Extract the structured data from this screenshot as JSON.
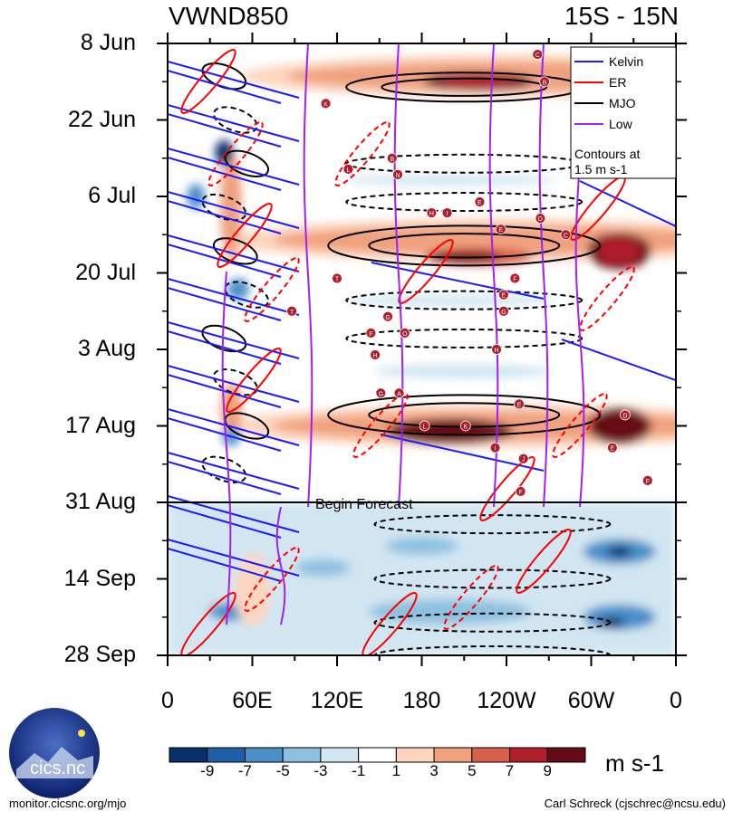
{
  "header": {
    "title_left": "VWND850",
    "title_right": "15S - 15N"
  },
  "chart_data": {
    "type": "heatmap",
    "title": "VWND850",
    "subtitle": "15S - 15N",
    "y_ticks": [
      "8 Jun",
      "22 Jun",
      "6 Jul",
      "20 Jul",
      "3 Aug",
      "17 Aug",
      "31 Aug",
      "14 Sep",
      "28 Sep"
    ],
    "x_ticks": [
      "0",
      "60E",
      "120E",
      "180",
      "120W",
      "60W",
      "0"
    ],
    "xlim": [
      0,
      360
    ],
    "y_range": [
      "8 Jun",
      "28 Sep"
    ],
    "forecast_line": {
      "date": "31 Aug",
      "label": "Begin Forecast"
    },
    "colorbar": {
      "labels": [
        "-9",
        "-7",
        "-5",
        "-3",
        "-1",
        "1",
        "3",
        "5",
        "7",
        "9"
      ],
      "units": "m s-1",
      "colors": [
        "#08306b",
        "#1f5fa8",
        "#4a8fc8",
        "#8ec1e0",
        "#d2e6f2",
        "#ffffff",
        "#fdd5be",
        "#f0a17e",
        "#d9604c",
        "#b01e2b",
        "#670a17"
      ]
    },
    "legend": {
      "placement": "top-right",
      "entries": [
        {
          "name": "Kelvin",
          "color": "#1a1aff"
        },
        {
          "name": "ER",
          "color": "#ff0000"
        },
        {
          "name": "MJO",
          "color": "#000000"
        },
        {
          "name": "Low",
          "color": "#a020f0"
        }
      ],
      "note_line1": "Contours at",
      "note_line2": "1.5 m s-1"
    },
    "storms": [
      {
        "letter": "C",
        "lon": 262,
        "day": 2
      },
      {
        "letter": "B",
        "lon": 267,
        "day": 7
      },
      {
        "letter": "K",
        "lon": 112,
        "day": 11
      },
      {
        "letter": "L",
        "lon": 128,
        "day": 23
      },
      {
        "letter": "B",
        "lon": 159,
        "day": 21
      },
      {
        "letter": "N",
        "lon": 163,
        "day": 24
      },
      {
        "letter": "E",
        "lon": 221,
        "day": 29
      },
      {
        "letter": "H",
        "lon": 187,
        "day": 31
      },
      {
        "letter": "I",
        "lon": 198,
        "day": 31
      },
      {
        "letter": "D",
        "lon": 264,
        "day": 32
      },
      {
        "letter": "E",
        "lon": 236,
        "day": 34
      },
      {
        "letter": "C",
        "lon": 282,
        "day": 35
      },
      {
        "letter": "T",
        "lon": 120,
        "day": 43
      },
      {
        "letter": "F",
        "lon": 246,
        "day": 43
      },
      {
        "letter": "E",
        "lon": 238,
        "day": 46
      },
      {
        "letter": "T",
        "lon": 88,
        "day": 49
      },
      {
        "letter": "G",
        "lon": 156,
        "day": 50
      },
      {
        "letter": "G",
        "lon": 238,
        "day": 49
      },
      {
        "letter": "F",
        "lon": 144,
        "day": 53
      },
      {
        "letter": "O",
        "lon": 168,
        "day": 53
      },
      {
        "letter": "H",
        "lon": 233,
        "day": 56
      },
      {
        "letter": "H",
        "lon": 147,
        "day": 57
      },
      {
        "letter": "G",
        "lon": 151,
        "day": 64
      },
      {
        "letter": "A",
        "lon": 164,
        "day": 64
      },
      {
        "letter": "E",
        "lon": 249,
        "day": 66
      },
      {
        "letter": "D",
        "lon": 324,
        "day": 68
      },
      {
        "letter": "L",
        "lon": 182,
        "day": 70
      },
      {
        "letter": "K",
        "lon": 211,
        "day": 70
      },
      {
        "letter": "I",
        "lon": 232,
        "day": 74
      },
      {
        "letter": "E",
        "lon": 315,
        "day": 74
      },
      {
        "letter": "J",
        "lon": 252,
        "day": 76
      },
      {
        "letter": "F",
        "lon": 340,
        "day": 80
      },
      {
        "letter": "F",
        "lon": 250,
        "day": 82
      }
    ]
  },
  "footer": {
    "left": "monitor.cicsnc.org/mjo",
    "right": "Carl Schreck (cjschrec@ncsu.edu)",
    "logo_text": "cics.nc"
  }
}
